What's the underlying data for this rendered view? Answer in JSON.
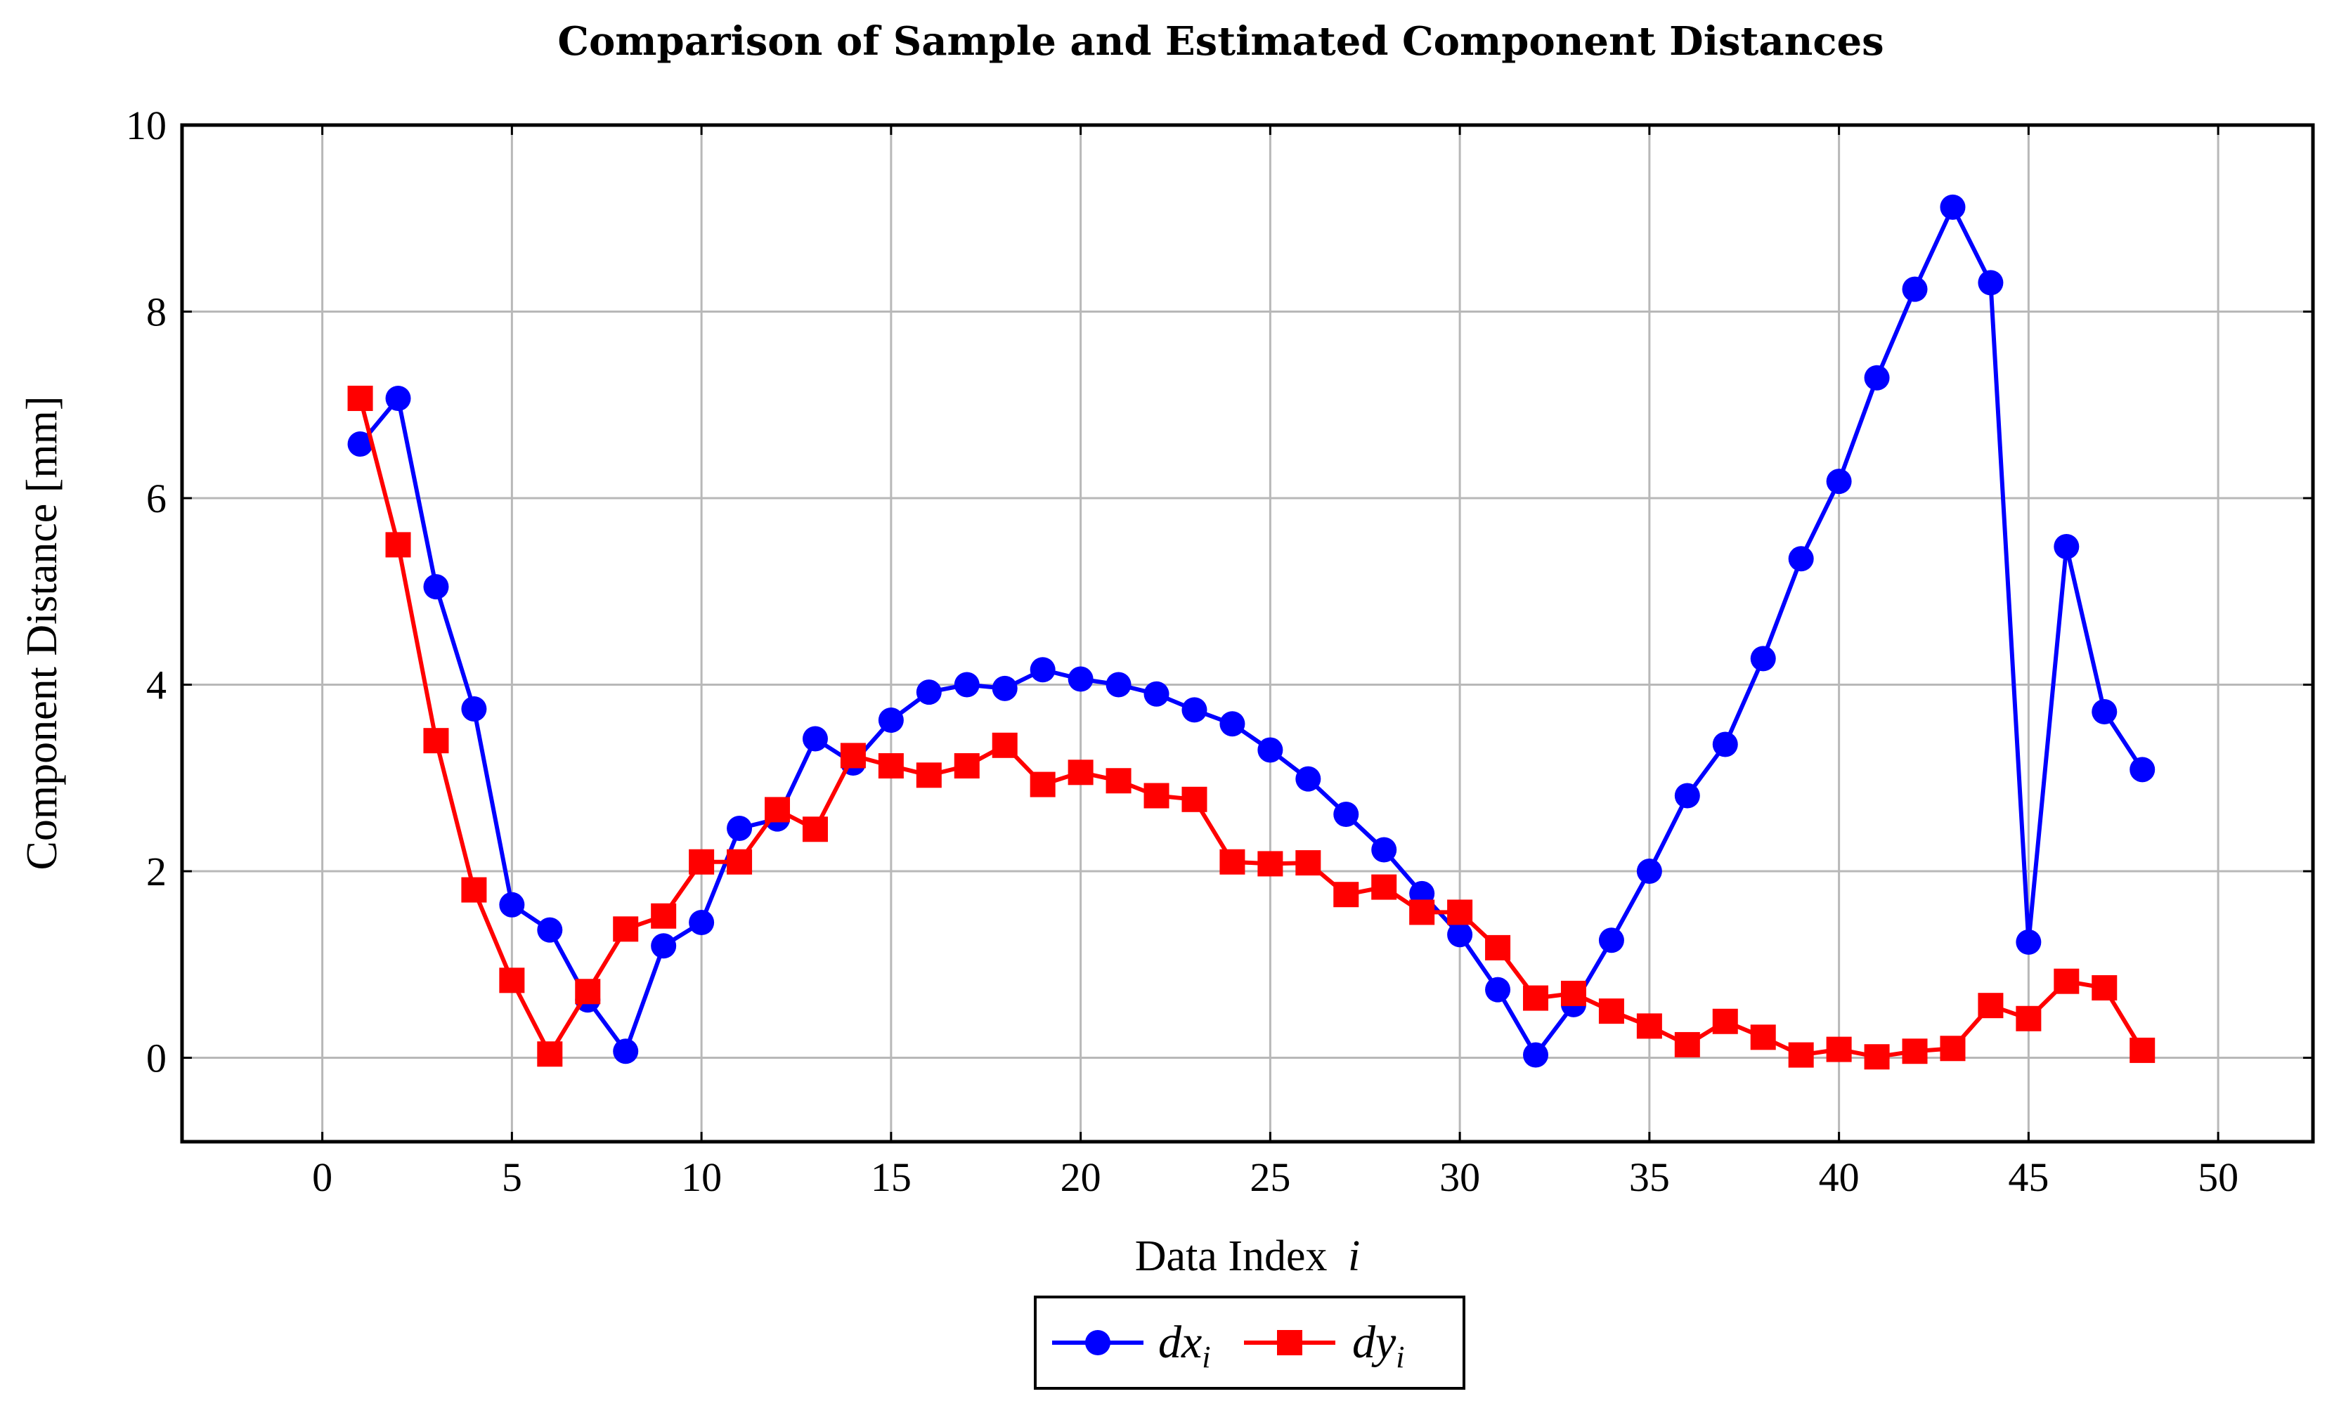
{
  "chart_data": {
    "type": "line",
    "title": "Comparison of Sample and Estimated Component Distances",
    "xlabel": "Data Index",
    "xlabel_var": "i",
    "ylabel": "Component Distance [mm]",
    "xlim": [
      -3.7,
      52.5
    ],
    "ylim": [
      -0.9,
      10
    ],
    "xticks": [
      0,
      5,
      10,
      15,
      20,
      25,
      30,
      35,
      40,
      45,
      50
    ],
    "yticks": [
      0,
      2,
      4,
      6,
      8,
      10
    ],
    "grid": true,
    "legend_position": "bottom-center",
    "series": [
      {
        "name": "dx",
        "name_sub": "i",
        "color": "#0000ff",
        "marker": "circle",
        "x": [
          1,
          2,
          3,
          4,
          5,
          6,
          7,
          8,
          9,
          10,
          11,
          12,
          13,
          14,
          15,
          16,
          17,
          18,
          19,
          20,
          21,
          22,
          23,
          24,
          25,
          26,
          27,
          28,
          29,
          30,
          31,
          32,
          33,
          34,
          35,
          36,
          37,
          38,
          39,
          40,
          41,
          42,
          43,
          44,
          45,
          46,
          47,
          48
        ],
        "values": [
          6.58,
          7.07,
          5.05,
          3.74,
          1.64,
          1.37,
          0.62,
          0.07,
          1.2,
          1.45,
          2.46,
          2.56,
          3.42,
          3.16,
          3.62,
          3.92,
          4.0,
          3.96,
          4.16,
          4.06,
          4.0,
          3.9,
          3.73,
          3.58,
          3.3,
          2.99,
          2.61,
          2.23,
          1.76,
          1.32,
          0.73,
          0.03,
          0.57,
          1.26,
          2.0,
          2.81,
          3.36,
          4.28,
          5.35,
          6.18,
          7.29,
          8.24,
          9.12,
          8.31,
          1.24,
          5.48,
          3.71,
          3.09
        ]
      },
      {
        "name": "dy",
        "name_sub": "i",
        "color": "#ff0000",
        "marker": "square",
        "x": [
          1,
          2,
          3,
          4,
          5,
          6,
          7,
          8,
          9,
          10,
          11,
          12,
          13,
          14,
          15,
          16,
          17,
          18,
          19,
          20,
          21,
          22,
          23,
          24,
          25,
          26,
          27,
          28,
          29,
          30,
          31,
          32,
          33,
          34,
          35,
          36,
          37,
          38,
          39,
          40,
          41,
          42,
          43,
          44,
          45,
          46,
          47,
          48
        ],
        "values": [
          7.07,
          5.5,
          3.4,
          1.8,
          0.83,
          0.04,
          0.71,
          1.38,
          1.52,
          2.1,
          2.1,
          2.66,
          2.45,
          3.24,
          3.13,
          3.03,
          3.13,
          3.35,
          2.93,
          3.06,
          2.97,
          2.81,
          2.77,
          2.1,
          2.08,
          2.09,
          1.75,
          1.83,
          1.56,
          1.56,
          1.18,
          0.64,
          0.69,
          0.5,
          0.34,
          0.14,
          0.39,
          0.22,
          0.03,
          0.09,
          0.01,
          0.07,
          0.1,
          0.56,
          0.42,
          0.82,
          0.75,
          0.08
        ]
      }
    ]
  }
}
